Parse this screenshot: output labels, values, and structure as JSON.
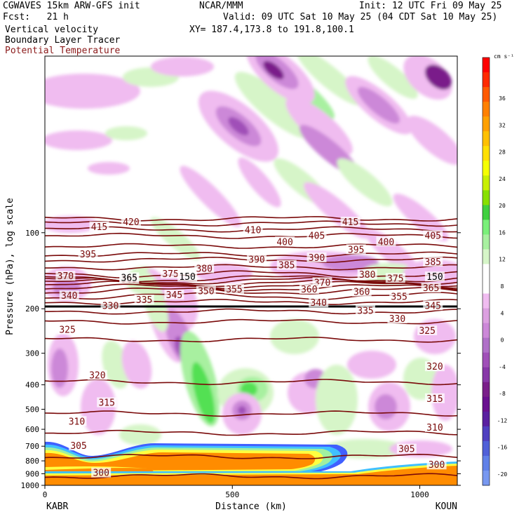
{
  "header": {
    "model": "CGWAVES 15km ARW-GFS init",
    "forecast": "Fcst:   21 h",
    "field1": "Vertical velocity",
    "field2": "Boundary Layer Tracer",
    "field3": "Potential Temperature",
    "center": "NCAR/MMM",
    "init": "Init: 12 UTC Fri 09 May 25",
    "valid": "Valid: 09 UTC Sat 10 May 25 (04 CDT Sat 10 May 25)",
    "xy": "XY= 187.4,173.8 to 191.8,100.1"
  },
  "colors": {
    "theta": "#7a0a0a",
    "tropopause": "#000000",
    "pbl_orange": "#ff8c00",
    "pos_light": "#d6f5c8",
    "pos_mid": "#a8f0a0",
    "pos_strong": "#52e052",
    "neg_light": "#f0bcf0",
    "neg_mid": "#cc88d8",
    "neg_strong": "#a050b8",
    "neg_max": "#7a1f8a"
  },
  "chart_data": {
    "type": "heatmap",
    "title": "Vertical velocity / Boundary Layer Tracer / Potential Temperature",
    "xlabel": "Distance (km)",
    "ylabel": "Pressure (hPa), log scale",
    "xlim": [
      0,
      1100
    ],
    "ylim": [
      1000,
      20
    ],
    "yscale": "log",
    "x_ticks": [
      0,
      500,
      1000
    ],
    "y_ticks": [
      100,
      200,
      300,
      400,
      500,
      600,
      700,
      800,
      900,
      1000
    ],
    "x_start_label": "KABR",
    "x_end_label": "KOUN",
    "colorbar": {
      "unit": "cm s⁻¹",
      "labels": [
        36,
        32,
        28,
        24,
        20,
        16,
        12,
        8,
        4,
        0,
        -4,
        -8,
        -12,
        -16,
        -20
      ],
      "colors": [
        "#ff0000",
        "#ff2a00",
        "#ff5a00",
        "#ff8000",
        "#ffa000",
        "#ffc000",
        "#ffe000",
        "#f5ff00",
        "#c8f000",
        "#88e000",
        "#40d040",
        "#7af07a",
        "#a8f0a0",
        "#d6f5c8",
        "#ffffff",
        "#ffffff",
        "#f0bcf0",
        "#dca0e0",
        "#cc88d8",
        "#b070c8",
        "#a050b8",
        "#8838a8",
        "#7a1f8a",
        "#6a1090",
        "#5a20a0",
        "#5040c0",
        "#5060d8",
        "#6080e8",
        "#7898f0"
      ]
    },
    "theta_contours": [
      {
        "value": 300,
        "p": 920
      },
      {
        "value": 305,
        "p": 770
      },
      {
        "value": 310,
        "p": 620
      },
      {
        "value": 315,
        "p": 520
      },
      {
        "value": 320,
        "p": 390
      },
      {
        "value": 325,
        "p": 265
      },
      {
        "value": 330,
        "p": 225
      },
      {
        "value": 335,
        "p": 205
      },
      {
        "value": 340,
        "p": 188
      },
      {
        "value": 345,
        "p": 178
      },
      {
        "value": 350,
        "p": 170
      },
      {
        "value": 355,
        "p": 165
      },
      {
        "value": 360,
        "p": 161
      },
      {
        "value": 365,
        "p": 158
      },
      {
        "value": 370,
        "p": 155
      },
      {
        "value": 375,
        "p": 152
      },
      {
        "value": 380,
        "p": 146
      },
      {
        "value": 385,
        "p": 137
      },
      {
        "value": 390,
        "p": 128
      },
      {
        "value": 395,
        "p": 122
      },
      {
        "value": 400,
        "p": 113
      },
      {
        "value": 405,
        "p": 103
      },
      {
        "value": 410,
        "p": 97
      },
      {
        "value": 415,
        "p": 92
      },
      {
        "value": 420,
        "p": 88
      }
    ],
    "theta_labels": [
      {
        "text": "415",
        "x": 145,
        "p": 95
      },
      {
        "text": "420",
        "x": 230,
        "p": 91
      },
      {
        "text": "410",
        "x": 555,
        "p": 98
      },
      {
        "text": "405",
        "x": 725,
        "p": 103
      },
      {
        "text": "415",
        "x": 815,
        "p": 91
      },
      {
        "text": "400",
        "x": 640,
        "p": 109
      },
      {
        "text": "405",
        "x": 1035,
        "p": 103
      },
      {
        "text": "400",
        "x": 910,
        "p": 109
      },
      {
        "text": "395",
        "x": 830,
        "p": 117
      },
      {
        "text": "395",
        "x": 115,
        "p": 122
      },
      {
        "text": "390",
        "x": 565,
        "p": 128
      },
      {
        "text": "390",
        "x": 725,
        "p": 126
      },
      {
        "text": "385",
        "x": 645,
        "p": 135
      },
      {
        "text": "385",
        "x": 1035,
        "p": 131
      },
      {
        "text": "380",
        "x": 425,
        "p": 139
      },
      {
        "text": "380",
        "x": 860,
        "p": 147
      },
      {
        "text": "375",
        "x": 335,
        "p": 146
      },
      {
        "text": "375",
        "x": 935,
        "p": 152
      },
      {
        "text": "370",
        "x": 55,
        "p": 149
      },
      {
        "text": "370",
        "x": 740,
        "p": 158
      },
      {
        "text": "365",
        "x": 225,
        "p": 153
      },
      {
        "text": "365",
        "x": 1030,
        "p": 166
      },
      {
        "text": "360",
        "x": 705,
        "p": 168
      },
      {
        "text": "360",
        "x": 845,
        "p": 172
      },
      {
        "text": "355",
        "x": 505,
        "p": 168
      },
      {
        "text": "355",
        "x": 945,
        "p": 180
      },
      {
        "text": "350",
        "x": 430,
        "p": 171
      },
      {
        "text": "345",
        "x": 345,
        "p": 177
      },
      {
        "text": "345",
        "x": 1035,
        "p": 195
      },
      {
        "text": "340",
        "x": 65,
        "p": 178
      },
      {
        "text": "340",
        "x": 730,
        "p": 190
      },
      {
        "text": "335",
        "x": 265,
        "p": 185
      },
      {
        "text": "335",
        "x": 855,
        "p": 204
      },
      {
        "text": "330",
        "x": 175,
        "p": 195
      },
      {
        "text": "330",
        "x": 940,
        "p": 220
      },
      {
        "text": "325",
        "x": 60,
        "p": 243
      },
      {
        "text": "325",
        "x": 1020,
        "p": 245
      },
      {
        "text": "320",
        "x": 140,
        "p": 368
      },
      {
        "text": "320",
        "x": 1040,
        "p": 340
      },
      {
        "text": "315",
        "x": 165,
        "p": 472
      },
      {
        "text": "315",
        "x": 1040,
        "p": 455
      },
      {
        "text": "310",
        "x": 85,
        "p": 560
      },
      {
        "text": "310",
        "x": 1040,
        "p": 592
      },
      {
        "text": "305",
        "x": 90,
        "p": 700
      },
      {
        "text": "305",
        "x": 965,
        "p": 720
      },
      {
        "text": "300",
        "x": 150,
        "p": 895
      },
      {
        "text": "300",
        "x": 1045,
        "p": 832
      }
    ],
    "tropopause_labels": [
      {
        "text": "365",
        "x": 225,
        "p": 151
      },
      {
        "text": "150",
        "x": 380,
        "p": 150
      },
      {
        "text": "150",
        "x": 1040,
        "p": 150
      }
    ]
  }
}
